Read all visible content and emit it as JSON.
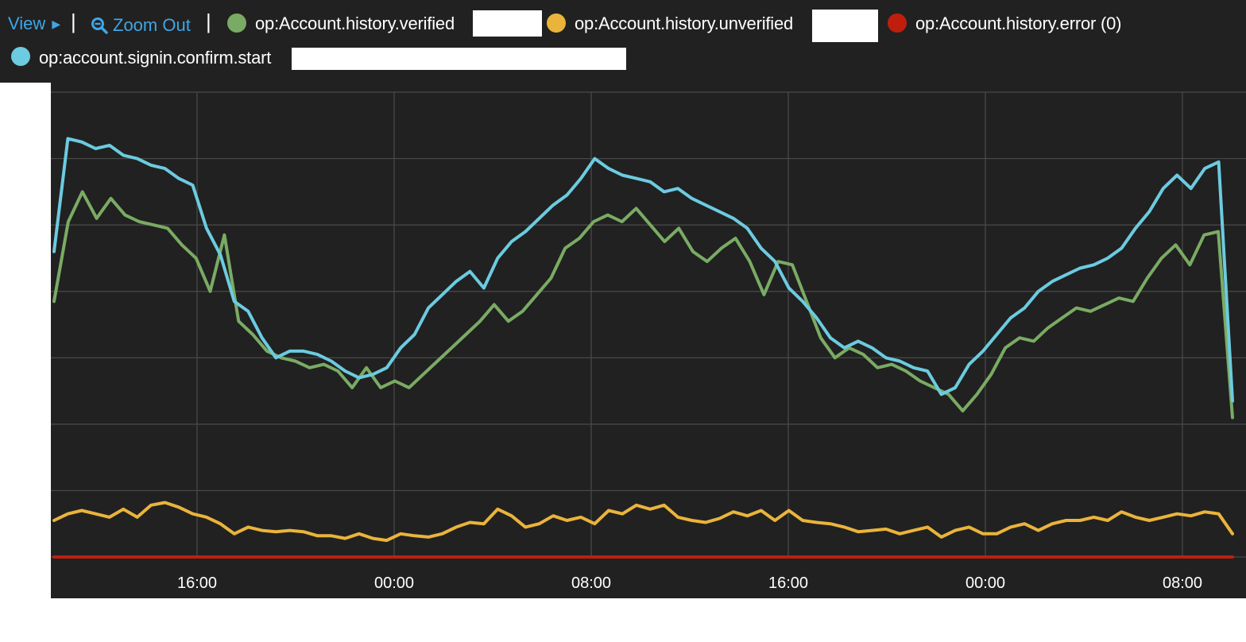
{
  "toolbar": {
    "view_label": "View",
    "zoom_out_label": "Zoom Out",
    "divider": "|"
  },
  "legend": [
    {
      "label": "op:Account.history.verified",
      "color": "#7aab64"
    },
    {
      "label": "op:Account.history.unverified",
      "color": "#eab43b"
    },
    {
      "label": "op:Account.history.error (0)",
      "color": "#c01e0d"
    },
    {
      "label": "op:account.signin.confirm.start",
      "color": "#6ccbe0"
    }
  ],
  "chart_data": {
    "type": "line",
    "x_axis": {
      "ticks": [
        "16:00",
        "00:00",
        "08:00",
        "16:00",
        "00:00",
        "08:00"
      ]
    },
    "y_axis": {
      "labels_visible": false,
      "range": [
        0,
        7
      ]
    },
    "grid": true,
    "series": [
      {
        "name": "op:account.signin.confirm.start",
        "color": "#6ccbe0",
        "values": [
          4.6,
          6.3,
          6.25,
          6.15,
          6.2,
          6.05,
          6.0,
          5.9,
          5.85,
          5.7,
          5.6,
          4.95,
          4.55,
          3.85,
          3.7,
          3.3,
          3.0,
          3.1,
          3.1,
          3.05,
          2.95,
          2.8,
          2.7,
          2.75,
          2.85,
          3.15,
          3.35,
          3.75,
          3.95,
          4.15,
          4.3,
          4.05,
          4.5,
          4.75,
          4.9,
          5.1,
          5.3,
          5.45,
          5.7,
          6.0,
          5.85,
          5.75,
          5.7,
          5.65,
          5.5,
          5.55,
          5.4,
          5.3,
          5.2,
          5.1,
          4.95,
          4.65,
          4.45,
          4.05,
          3.85,
          3.6,
          3.3,
          3.15,
          3.25,
          3.15,
          3.0,
          2.95,
          2.85,
          2.8,
          2.45,
          2.55,
          2.9,
          3.1,
          3.35,
          3.6,
          3.75,
          4.0,
          4.15,
          4.25,
          4.35,
          4.4,
          4.5,
          4.65,
          4.95,
          5.2,
          5.55,
          5.75,
          5.55,
          5.85,
          5.95,
          2.35
        ],
        "smooth_index": 0
      },
      {
        "name": "op:Account.history.verified",
        "color": "#7aab64",
        "values": [
          3.85,
          5.05,
          5.5,
          5.1,
          5.4,
          5.15,
          5.05,
          5.0,
          4.95,
          4.7,
          4.5,
          4.0,
          4.85,
          3.55,
          3.35,
          3.1,
          3.0,
          2.95,
          2.85,
          2.9,
          2.8,
          2.55,
          2.85,
          2.55,
          2.65,
          2.55,
          2.75,
          2.95,
          3.15,
          3.35,
          3.55,
          3.8,
          3.55,
          3.7,
          3.95,
          4.2,
          4.65,
          4.8,
          5.05,
          5.15,
          5.05,
          5.25,
          5.0,
          4.75,
          4.95,
          4.6,
          4.45,
          4.65,
          4.8,
          4.45,
          3.95,
          4.45,
          4.4,
          3.85,
          3.3,
          3.0,
          3.15,
          3.05,
          2.85,
          2.9,
          2.8,
          2.65,
          2.55,
          2.45,
          2.2,
          2.45,
          2.75,
          3.15,
          3.3,
          3.25,
          3.45,
          3.6,
          3.75,
          3.7,
          3.8,
          3.9,
          3.85,
          4.2,
          4.5,
          4.7,
          4.4,
          4.85,
          4.9,
          2.1
        ],
        "smooth_index": 1
      },
      {
        "name": "op:Account.history.unverified",
        "color": "#eab43b",
        "values": [
          0.55,
          0.65,
          0.7,
          0.65,
          0.6,
          0.72,
          0.6,
          0.78,
          0.82,
          0.75,
          0.65,
          0.6,
          0.5,
          0.35,
          0.45,
          0.4,
          0.38,
          0.4,
          0.38,
          0.32,
          0.32,
          0.28,
          0.35,
          0.28,
          0.25,
          0.35,
          0.32,
          0.3,
          0.35,
          0.45,
          0.52,
          0.5,
          0.72,
          0.62,
          0.45,
          0.5,
          0.62,
          0.55,
          0.6,
          0.5,
          0.7,
          0.65,
          0.78,
          0.72,
          0.78,
          0.6,
          0.55,
          0.52,
          0.58,
          0.68,
          0.62,
          0.7,
          0.55,
          0.7,
          0.55,
          0.52,
          0.5,
          0.45,
          0.38,
          0.4,
          0.42,
          0.35,
          0.4,
          0.45,
          0.3,
          0.4,
          0.45,
          0.35,
          0.35,
          0.45,
          0.5,
          0.4,
          0.5,
          0.55,
          0.55,
          0.6,
          0.55,
          0.68,
          0.6,
          0.55,
          0.6,
          0.65,
          0.62,
          0.68,
          0.65,
          0.35
        ]
      },
      {
        "name": "op:Account.history.error (0)",
        "color": "#c01e0d",
        "values": [
          0,
          0,
          0,
          0,
          0,
          0,
          0,
          0,
          0,
          0,
          0,
          0,
          0,
          0,
          0,
          0,
          0,
          0,
          0,
          0,
          0,
          0,
          0,
          0,
          0,
          0,
          0,
          0,
          0,
          0,
          0,
          0,
          0,
          0,
          0,
          0,
          0,
          0,
          0,
          0,
          0,
          0,
          0,
          0,
          0,
          0,
          0,
          0,
          0,
          0,
          0,
          0,
          0,
          0,
          0,
          0,
          0,
          0,
          0,
          0,
          0,
          0,
          0,
          0,
          0,
          0,
          0,
          0,
          0,
          0,
          0,
          0,
          0,
          0,
          0,
          0,
          0,
          0,
          0,
          0,
          0,
          0,
          0,
          0,
          0,
          0
        ]
      }
    ]
  }
}
